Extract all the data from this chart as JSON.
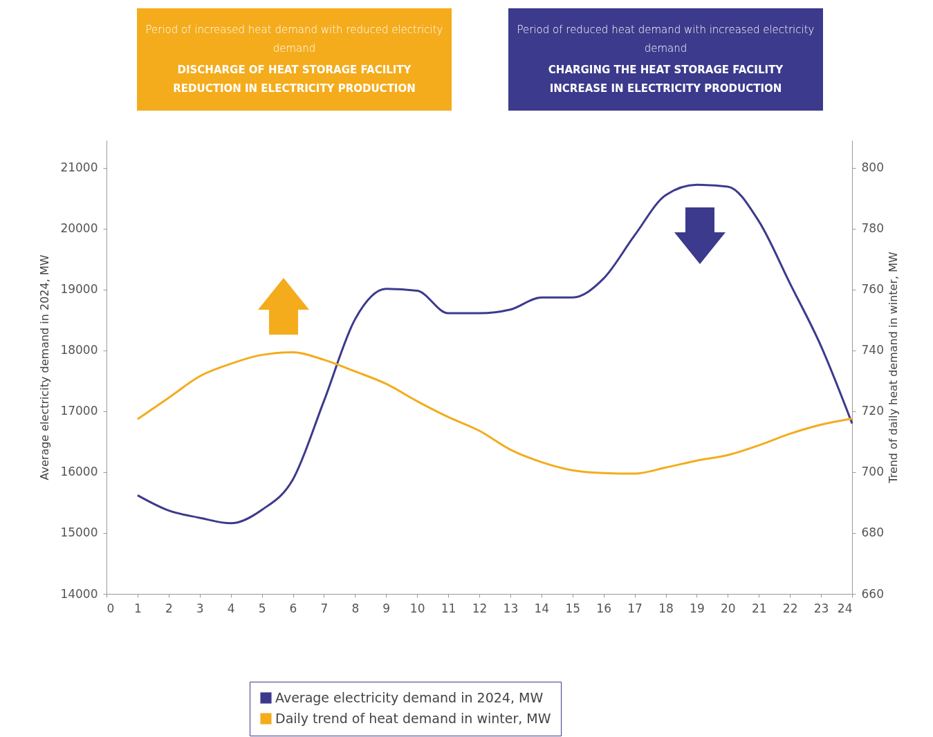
{
  "chart_data": {
    "type": "line",
    "annotations": [
      "Period of increased heat demand with reduced electricity demand",
      "DISCHARGE OF HEAT STORAGE FACILITY",
      "REDUCTION IN ELECTRICITY PRODUCTION",
      "Period of reduced heat demand with increased electricity demand",
      "CHARGING THE HEAT STORAGE FACILITY",
      "INCREASE IN ELECTRICITY PRODUCTION"
    ],
    "xlabel": null,
    "ylabel": "Average electricity demand in 2024, MW",
    "y2label": "Trend of daily heat demand in winter, MW",
    "x": [
      1,
      2,
      3,
      4,
      5,
      6,
      7,
      8,
      9,
      10,
      11,
      12,
      13,
      14,
      15,
      16,
      17,
      18,
      19,
      20,
      21,
      22,
      23,
      24
    ],
    "series": [
      {
        "name": "Average electricity demand in 2024, MW",
        "color": "#3c3a8c",
        "values": [
          15620,
          15370,
          15250,
          15160,
          15380,
          15880,
          17170,
          18510,
          19010,
          18980,
          18610,
          18610,
          18670,
          18870,
          18870,
          19180,
          19890,
          20550,
          20720,
          20690,
          20120,
          19100,
          18070,
          16800
        ]
      },
      {
        "name": "Daily trend of heat demand in winter, MW",
        "color": "#f4ac1c",
        "axis": "y2",
        "values": [
          717.4,
          724.4,
          731.5,
          735.6,
          738.5,
          739.4,
          736.9,
          733.1,
          729,
          723.3,
          718.1,
          713.6,
          707.4,
          703.3,
          700.6,
          699.7,
          699.5,
          701.5,
          703.8,
          705.6,
          708.8,
          712.6,
          715.6,
          717.6
        ]
      }
    ],
    "xlim": [
      0,
      24
    ],
    "xticks": [
      0,
      1,
      2,
      3,
      4,
      5,
      6,
      7,
      8,
      9,
      10,
      11,
      12,
      13,
      14,
      15,
      16,
      17,
      18,
      19,
      20,
      21,
      22,
      23,
      24
    ],
    "ylim": [
      14000,
      21450
    ],
    "yticks": [
      14000,
      15000,
      16000,
      17000,
      18000,
      19000,
      20000,
      21000
    ],
    "y2lim": [
      660,
      809
    ],
    "y2ticks": [
      660,
      680,
      700,
      720,
      740,
      760,
      780,
      800
    ],
    "grid": false,
    "legend": "bottom",
    "marker": "none"
  }
}
